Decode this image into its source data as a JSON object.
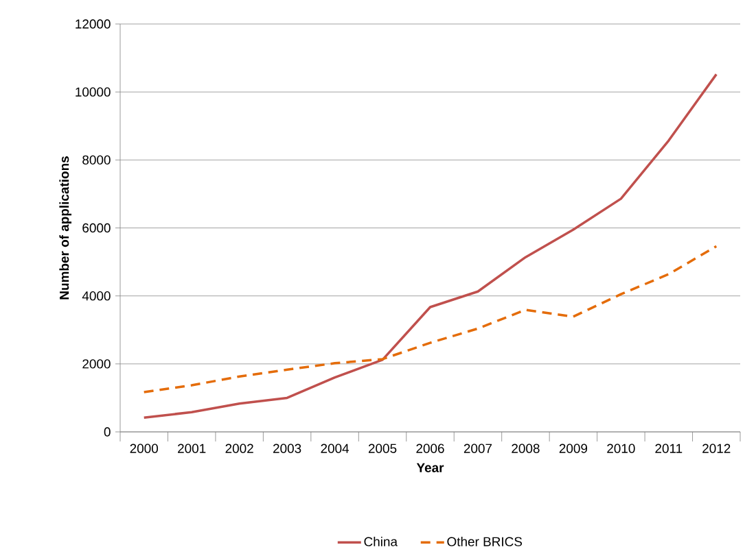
{
  "chart_data": {
    "type": "line",
    "xlabel": "Year",
    "ylabel": "Number of applications",
    "categories": [
      "2000",
      "2001",
      "2002",
      "2003",
      "2004",
      "2005",
      "2006",
      "2007",
      "2008",
      "2009",
      "2010",
      "2011",
      "2012"
    ],
    "series": [
      {
        "name": "China",
        "color": "#c0504d",
        "line_style": "solid",
        "values": [
          420,
          580,
          830,
          1000,
          1600,
          2120,
          3670,
          4130,
          5140,
          5950,
          6860,
          8570,
          10520
        ]
      },
      {
        "name": "Other BRICS",
        "color": "#e46c0a",
        "line_style": "dashed",
        "values": [
          1170,
          1370,
          1630,
          1830,
          2020,
          2140,
          2620,
          3040,
          3590,
          3390,
          4050,
          4640,
          5460
        ]
      }
    ],
    "ylim": [
      0,
      12000
    ],
    "yticks": [
      0,
      2000,
      4000,
      6000,
      8000,
      10000,
      12000
    ],
    "grid": "y",
    "legend": "bottom",
    "marker": "none"
  }
}
